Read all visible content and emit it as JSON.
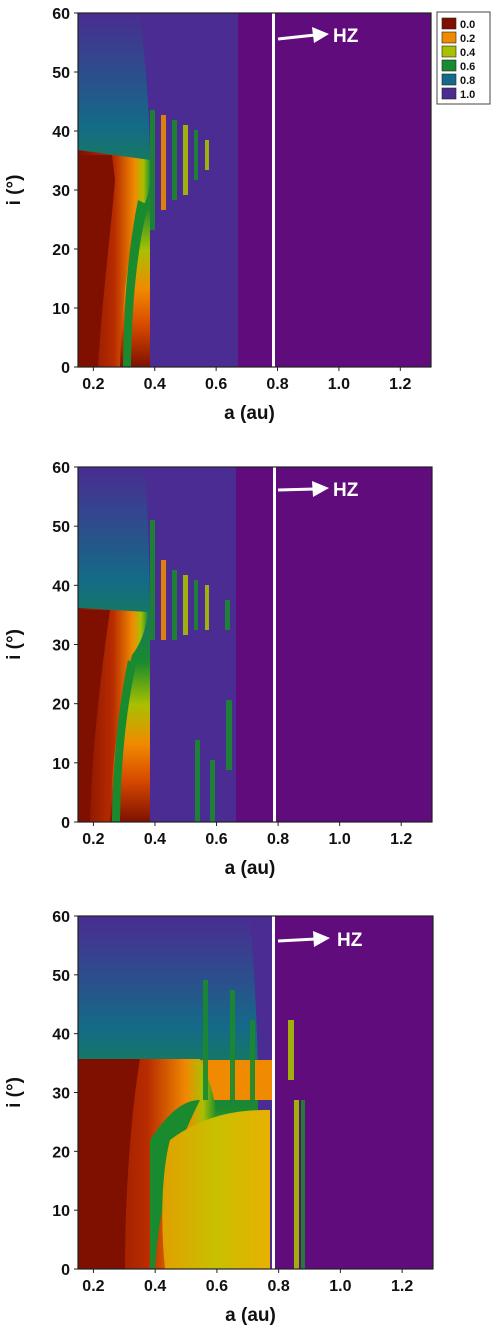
{
  "chart_data": [
    {
      "type": "heatmap",
      "xlabel": "a (au)",
      "ylabel": "i (°)",
      "xlim": [
        0.15,
        1.3
      ],
      "ylim": [
        0,
        60
      ],
      "xticks": [
        "0.2",
        "0.4",
        "0.6",
        "0.8",
        "1.0",
        "1.2"
      ],
      "yticks": [
        "0",
        "10",
        "20",
        "30",
        "40",
        "50",
        "60"
      ],
      "hz_line_a": 0.79,
      "hz_label": "HZ",
      "colorbar": {
        "levels": [
          "0.0",
          "0.2",
          "0.4",
          "0.6",
          "0.8",
          "1.0"
        ],
        "colors": [
          "#7f1000",
          "#f08a00",
          "#a9c000",
          "#1a8a2e",
          "#136b87",
          "#4a2c92"
        ]
      },
      "background_color": "#610c7c",
      "notes": "colour indicates fraction value; band of low values below ~35 deg at small a, resonance spikes between 0.35 and 0.65 au"
    },
    {
      "type": "heatmap",
      "xlabel": "a (au)",
      "ylabel": "i (°)",
      "xlim": [
        0.15,
        1.3
      ],
      "ylim": [
        0,
        60
      ],
      "xticks": [
        "0.2",
        "0.4",
        "0.6",
        "0.8",
        "1.0",
        "1.2"
      ],
      "yticks": [
        "0",
        "10",
        "20",
        "30",
        "40",
        "50",
        "60"
      ],
      "hz_line_a": 0.79,
      "hz_label": "HZ"
    },
    {
      "type": "heatmap",
      "xlabel": "a (au)",
      "ylabel": "i (°)",
      "xlim": [
        0.15,
        1.3
      ],
      "ylim": [
        0,
        60
      ],
      "xticks": [
        "0.2",
        "0.4",
        "0.6",
        "0.8",
        "1.0",
        "1.2"
      ],
      "yticks": [
        "0",
        "10",
        "20",
        "30",
        "40",
        "50",
        "60"
      ],
      "hz_line_a": 0.79,
      "hz_label": "HZ"
    }
  ]
}
